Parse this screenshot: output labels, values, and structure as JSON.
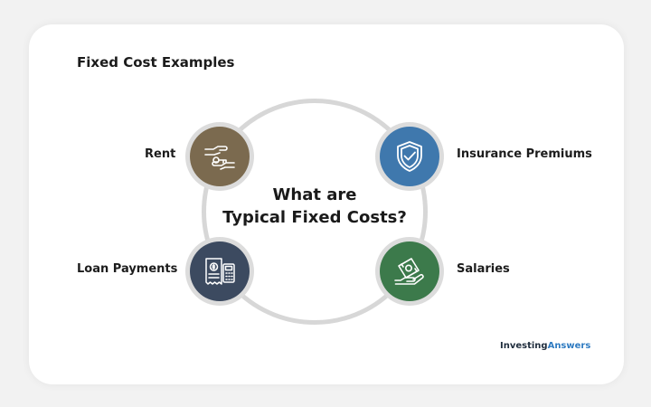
{
  "title": "Fixed Cost Examples",
  "center": {
    "line1": "What are",
    "line2": "Typical Fixed Costs?"
  },
  "items": [
    {
      "label": "Rent",
      "icon": "key-handover-icon",
      "color": "#7b6a4f"
    },
    {
      "label": "Insurance Premiums",
      "icon": "shield-check-icon",
      "color": "#3f78ad"
    },
    {
      "label": "Loan Payments",
      "icon": "loan-document-calculator-icon",
      "color": "#3c4a60"
    },
    {
      "label": "Salaries",
      "icon": "money-hand-icon",
      "color": "#3c7a4b"
    }
  ],
  "logo": {
    "part1": "Investing",
    "part2": "Answers",
    "color1": "#1f2d3d",
    "color2": "#2f7bc1"
  }
}
